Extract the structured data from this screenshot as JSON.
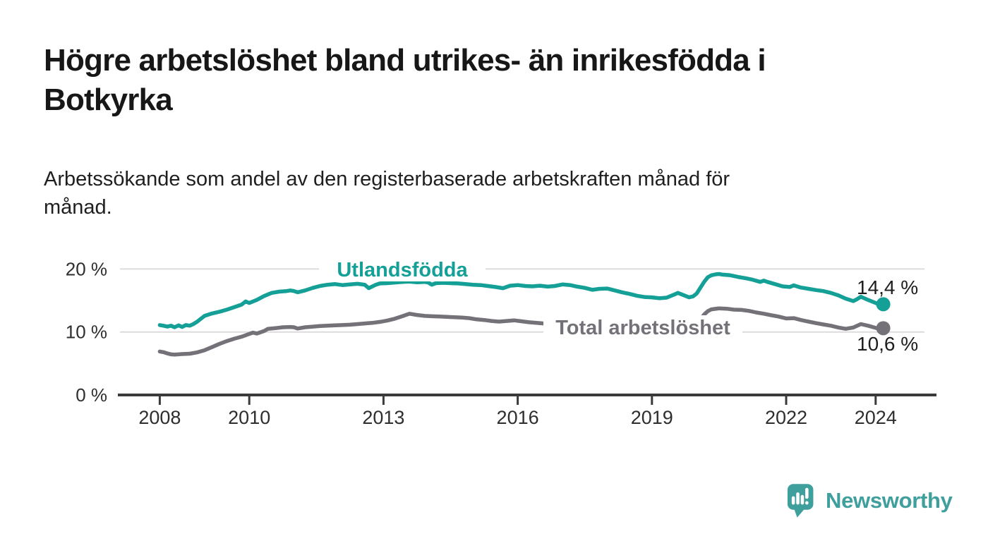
{
  "title": {
    "text": "Högre arbetslöshet bland utrikes- än inrikesfödda i Botkyrka",
    "line1": "Högre arbetslöshet bland utrikes- än inrikesfödda i",
    "line2": "Botkyrka"
  },
  "subtitle": {
    "text": "Arbetssökande som andel av den registerbaserade arbetskraften månad för månad.",
    "line1": "Arbetssökande som andel av den registerbaserade arbetskraften månad för",
    "line2": "månad."
  },
  "branding": {
    "wordmark": "Newsworthy",
    "icon": "newsworthy-speech-bubble-chart-icon",
    "color": "#3f9f9d"
  },
  "colors": {
    "teal_series": "#14a096",
    "gray_series": "#757178",
    "axis": "#3a3a3a",
    "gridline": "#dcdcdc",
    "text": "#1e1e1e"
  },
  "chart_data": {
    "type": "line",
    "title": "Högre arbetslöshet bland utrikes- än inrikesfödda i Botkyrka",
    "subtitle": "Arbetssökande som andel av den registerbaserade arbetskraften månad för månad.",
    "x_unit": "year",
    "y_unit": "%",
    "xlim": [
      2007.0,
      2025.35
    ],
    "ylim": [
      0,
      22
    ],
    "grid": "horizontal",
    "legend_position": "inline-labels",
    "x_ticks": [
      2008,
      2010,
      2013,
      2016,
      2019,
      2022,
      2024
    ],
    "y_ticks": [
      {
        "value": 0,
        "label": "0 %"
      },
      {
        "value": 10,
        "label": "10 %"
      },
      {
        "value": 20,
        "label": "20 %"
      }
    ],
    "series": [
      {
        "name": "Utlandsfödda",
        "color": "#14a096",
        "end_label": "14,4 %",
        "end_value": 14.4,
        "points": [
          [
            2008.0,
            11.1
          ],
          [
            2008.08,
            11.0
          ],
          [
            2008.17,
            10.85
          ],
          [
            2008.25,
            11.0
          ],
          [
            2008.33,
            10.75
          ],
          [
            2008.42,
            11.05
          ],
          [
            2008.5,
            10.8
          ],
          [
            2008.58,
            11.1
          ],
          [
            2008.67,
            11.0
          ],
          [
            2008.75,
            11.25
          ],
          [
            2008.83,
            11.6
          ],
          [
            2008.92,
            12.1
          ],
          [
            2009.0,
            12.55
          ],
          [
            2009.17,
            12.95
          ],
          [
            2009.33,
            13.2
          ],
          [
            2009.5,
            13.55
          ],
          [
            2009.67,
            13.95
          ],
          [
            2009.83,
            14.35
          ],
          [
            2009.92,
            14.85
          ],
          [
            2010.0,
            14.6
          ],
          [
            2010.17,
            15.1
          ],
          [
            2010.33,
            15.7
          ],
          [
            2010.5,
            16.2
          ],
          [
            2010.67,
            16.4
          ],
          [
            2010.83,
            16.5
          ],
          [
            2010.92,
            16.6
          ],
          [
            2011.0,
            16.5
          ],
          [
            2011.08,
            16.3
          ],
          [
            2011.25,
            16.6
          ],
          [
            2011.42,
            17.0
          ],
          [
            2011.58,
            17.3
          ],
          [
            2011.75,
            17.5
          ],
          [
            2011.92,
            17.6
          ],
          [
            2012.08,
            17.45
          ],
          [
            2012.25,
            17.55
          ],
          [
            2012.42,
            17.65
          ],
          [
            2012.58,
            17.5
          ],
          [
            2012.67,
            16.95
          ],
          [
            2012.83,
            17.5
          ],
          [
            2012.92,
            17.7
          ],
          [
            2013.08,
            17.75
          ],
          [
            2013.25,
            17.85
          ],
          [
            2013.42,
            17.95
          ],
          [
            2013.58,
            18.0
          ],
          [
            2013.75,
            17.9
          ],
          [
            2013.92,
            17.95
          ],
          [
            2014.0,
            17.85
          ],
          [
            2014.08,
            17.5
          ],
          [
            2014.17,
            17.75
          ],
          [
            2014.33,
            17.8
          ],
          [
            2014.5,
            17.75
          ],
          [
            2014.67,
            17.7
          ],
          [
            2014.83,
            17.6
          ],
          [
            2015.0,
            17.5
          ],
          [
            2015.17,
            17.45
          ],
          [
            2015.33,
            17.3
          ],
          [
            2015.5,
            17.15
          ],
          [
            2015.67,
            16.95
          ],
          [
            2015.83,
            17.35
          ],
          [
            2016.0,
            17.45
          ],
          [
            2016.17,
            17.3
          ],
          [
            2016.33,
            17.25
          ],
          [
            2016.5,
            17.35
          ],
          [
            2016.67,
            17.2
          ],
          [
            2016.83,
            17.3
          ],
          [
            2017.0,
            17.55
          ],
          [
            2017.17,
            17.45
          ],
          [
            2017.33,
            17.2
          ],
          [
            2017.5,
            17.0
          ],
          [
            2017.67,
            16.7
          ],
          [
            2017.83,
            16.85
          ],
          [
            2018.0,
            16.9
          ],
          [
            2018.17,
            16.6
          ],
          [
            2018.33,
            16.3
          ],
          [
            2018.5,
            16.05
          ],
          [
            2018.67,
            15.75
          ],
          [
            2018.83,
            15.55
          ],
          [
            2019.0,
            15.5
          ],
          [
            2019.17,
            15.35
          ],
          [
            2019.33,
            15.45
          ],
          [
            2019.5,
            15.95
          ],
          [
            2019.58,
            16.2
          ],
          [
            2019.67,
            15.95
          ],
          [
            2019.83,
            15.5
          ],
          [
            2019.92,
            15.65
          ],
          [
            2020.0,
            16.1
          ],
          [
            2020.08,
            17.0
          ],
          [
            2020.17,
            18.0
          ],
          [
            2020.25,
            18.7
          ],
          [
            2020.33,
            19.0
          ],
          [
            2020.42,
            19.15
          ],
          [
            2020.5,
            19.2
          ],
          [
            2020.58,
            19.1
          ],
          [
            2020.75,
            19.0
          ],
          [
            2020.92,
            18.75
          ],
          [
            2021.08,
            18.55
          ],
          [
            2021.25,
            18.3
          ],
          [
            2021.42,
            17.95
          ],
          [
            2021.5,
            18.15
          ],
          [
            2021.58,
            17.95
          ],
          [
            2021.75,
            17.6
          ],
          [
            2021.92,
            17.25
          ],
          [
            2022.08,
            17.15
          ],
          [
            2022.17,
            17.4
          ],
          [
            2022.33,
            17.05
          ],
          [
            2022.5,
            16.85
          ],
          [
            2022.67,
            16.65
          ],
          [
            2022.83,
            16.5
          ],
          [
            2023.0,
            16.2
          ],
          [
            2023.17,
            15.8
          ],
          [
            2023.33,
            15.3
          ],
          [
            2023.5,
            14.9
          ],
          [
            2023.58,
            15.2
          ],
          [
            2023.67,
            15.6
          ],
          [
            2023.83,
            15.1
          ],
          [
            2024.0,
            14.6
          ],
          [
            2024.08,
            14.4
          ],
          [
            2024.17,
            14.4
          ]
        ]
      },
      {
        "name": "Total arbetslöshet",
        "color": "#757178",
        "end_label": "10,6 %",
        "end_value": 10.6,
        "points": [
          [
            2008.0,
            6.9
          ],
          [
            2008.08,
            6.8
          ],
          [
            2008.17,
            6.6
          ],
          [
            2008.25,
            6.45
          ],
          [
            2008.33,
            6.4
          ],
          [
            2008.5,
            6.5
          ],
          [
            2008.67,
            6.55
          ],
          [
            2008.83,
            6.75
          ],
          [
            2009.0,
            7.1
          ],
          [
            2009.17,
            7.6
          ],
          [
            2009.33,
            8.1
          ],
          [
            2009.5,
            8.55
          ],
          [
            2009.67,
            8.95
          ],
          [
            2009.83,
            9.25
          ],
          [
            2010.0,
            9.7
          ],
          [
            2010.08,
            9.9
          ],
          [
            2010.17,
            9.75
          ],
          [
            2010.33,
            10.15
          ],
          [
            2010.42,
            10.5
          ],
          [
            2010.58,
            10.6
          ],
          [
            2010.75,
            10.75
          ],
          [
            2010.92,
            10.8
          ],
          [
            2011.0,
            10.75
          ],
          [
            2011.08,
            10.55
          ],
          [
            2011.25,
            10.75
          ],
          [
            2011.42,
            10.85
          ],
          [
            2011.58,
            10.95
          ],
          [
            2011.75,
            11.0
          ],
          [
            2011.92,
            11.05
          ],
          [
            2012.08,
            11.1
          ],
          [
            2012.25,
            11.15
          ],
          [
            2012.42,
            11.25
          ],
          [
            2012.58,
            11.35
          ],
          [
            2012.75,
            11.45
          ],
          [
            2012.92,
            11.6
          ],
          [
            2013.08,
            11.8
          ],
          [
            2013.25,
            12.1
          ],
          [
            2013.42,
            12.5
          ],
          [
            2013.58,
            12.9
          ],
          [
            2013.75,
            12.7
          ],
          [
            2013.92,
            12.55
          ],
          [
            2014.08,
            12.5
          ],
          [
            2014.25,
            12.45
          ],
          [
            2014.42,
            12.4
          ],
          [
            2014.58,
            12.35
          ],
          [
            2014.75,
            12.3
          ],
          [
            2014.92,
            12.2
          ],
          [
            2015.08,
            12.0
          ],
          [
            2015.25,
            11.9
          ],
          [
            2015.42,
            11.75
          ],
          [
            2015.58,
            11.65
          ],
          [
            2015.75,
            11.75
          ],
          [
            2015.92,
            11.85
          ],
          [
            2016.08,
            11.7
          ],
          [
            2016.25,
            11.55
          ],
          [
            2016.42,
            11.45
          ],
          [
            2016.58,
            11.35
          ],
          [
            2016.75,
            11.25
          ],
          [
            2016.92,
            11.15
          ],
          [
            2017.08,
            11.05
          ],
          [
            2017.25,
            10.95
          ],
          [
            2017.42,
            10.85
          ],
          [
            2017.58,
            10.8
          ],
          [
            2017.75,
            10.75
          ],
          [
            2017.92,
            10.7
          ],
          [
            2018.08,
            10.6
          ],
          [
            2018.25,
            10.55
          ],
          [
            2018.42,
            10.5
          ],
          [
            2018.58,
            10.45
          ],
          [
            2018.75,
            10.4
          ],
          [
            2018.92,
            10.4
          ],
          [
            2019.08,
            10.4
          ],
          [
            2019.25,
            10.45
          ],
          [
            2019.42,
            10.5
          ],
          [
            2019.58,
            10.55
          ],
          [
            2019.75,
            10.6
          ],
          [
            2019.92,
            10.9
          ],
          [
            2020.0,
            11.3
          ],
          [
            2020.08,
            12.0
          ],
          [
            2020.17,
            12.8
          ],
          [
            2020.25,
            13.3
          ],
          [
            2020.33,
            13.6
          ],
          [
            2020.5,
            13.75
          ],
          [
            2020.67,
            13.7
          ],
          [
            2020.83,
            13.55
          ],
          [
            2021.0,
            13.5
          ],
          [
            2021.17,
            13.35
          ],
          [
            2021.33,
            13.1
          ],
          [
            2021.5,
            12.9
          ],
          [
            2021.67,
            12.65
          ],
          [
            2021.83,
            12.45
          ],
          [
            2022.0,
            12.15
          ],
          [
            2022.17,
            12.2
          ],
          [
            2022.33,
            11.9
          ],
          [
            2022.5,
            11.65
          ],
          [
            2022.67,
            11.4
          ],
          [
            2022.83,
            11.2
          ],
          [
            2023.0,
            11.0
          ],
          [
            2023.17,
            10.7
          ],
          [
            2023.33,
            10.5
          ],
          [
            2023.5,
            10.7
          ],
          [
            2023.67,
            11.25
          ],
          [
            2023.83,
            11.0
          ],
          [
            2024.0,
            10.65
          ],
          [
            2024.08,
            10.5
          ],
          [
            2024.17,
            10.6
          ]
        ]
      }
    ]
  }
}
